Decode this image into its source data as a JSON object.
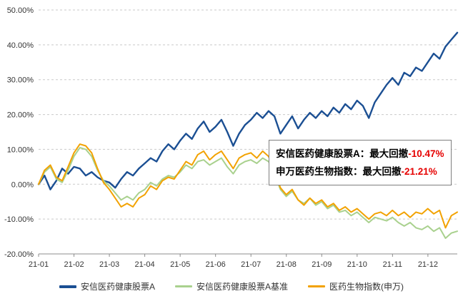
{
  "chart_data": {
    "type": "line",
    "title": "",
    "xlabel": "",
    "ylabel": "",
    "background": "#ffffff",
    "grid": "dashed-horizontal",
    "grid_color": "#c9c9c9",
    "axis_color": "#8c8c8c",
    "tick_label_color": "#333333",
    "legend_position": "bottom",
    "ylim": [
      -20,
      50
    ],
    "x_range": [
      0,
      11.83
    ],
    "y_ticks": [
      50,
      40,
      30,
      20,
      10,
      0,
      -10,
      -20
    ],
    "y_tick_labels": [
      "50.00%",
      "40.00%",
      "30.00%",
      "20.00%",
      "10.00%",
      "0.00%",
      "-10.00%",
      "-20.00%"
    ],
    "x_tick_positions": [
      0,
      1,
      2,
      3,
      4,
      5,
      6,
      7,
      8,
      9,
      10,
      11
    ],
    "x_tick_labels": [
      "21-01",
      "21-02",
      "21-03",
      "21-04",
      "21-05",
      "21-06",
      "21-07",
      "21-08",
      "21-09",
      "21-10",
      "21-11",
      "21-12"
    ],
    "unit": "percent",
    "series": [
      {
        "name": "安信医药健康股票A",
        "color": "#1b4f93",
        "width": 2.4,
        "values": [
          0.0,
          2.5,
          -1.5,
          1.0,
          4.5,
          3.0,
          5.0,
          4.5,
          2.5,
          3.5,
          2.0,
          1.0,
          0.5,
          -1.0,
          1.5,
          3.5,
          2.5,
          4.5,
          6.0,
          7.5,
          6.5,
          9.5,
          11.5,
          10.0,
          12.5,
          14.5,
          13.0,
          16.0,
          18.0,
          15.0,
          16.5,
          18.5,
          15.0,
          11.0,
          14.5,
          17.0,
          18.5,
          20.5,
          19.0,
          21.0,
          19.5,
          14.5,
          17.0,
          19.5,
          16.0,
          18.5,
          20.5,
          19.0,
          21.0,
          19.5,
          22.0,
          20.5,
          23.0,
          21.5,
          24.0,
          22.5,
          19.0,
          23.5,
          26.0,
          28.5,
          30.5,
          28.5,
          32.0,
          31.0,
          33.5,
          32.5,
          35.0,
          37.5,
          36.0,
          39.5,
          41.5,
          43.5
        ]
      },
      {
        "name": "安信医药健康股票A基准",
        "color": "#a9d18e",
        "width": 2,
        "values": [
          0.0,
          3.5,
          5.0,
          1.5,
          0.5,
          4.0,
          8.0,
          10.5,
          10.0,
          8.0,
          4.0,
          1.0,
          -0.5,
          -2.5,
          -4.5,
          -3.5,
          -4.5,
          -2.5,
          -1.5,
          0.5,
          -0.5,
          1.5,
          2.5,
          2.0,
          3.5,
          5.5,
          4.5,
          6.5,
          7.0,
          5.5,
          6.5,
          7.5,
          5.0,
          3.0,
          5.5,
          6.5,
          7.0,
          6.0,
          7.5,
          6.5,
          3.0,
          -1.5,
          -3.5,
          -2.0,
          -4.5,
          -5.5,
          -4.0,
          -6.0,
          -5.0,
          -7.0,
          -6.0,
          -8.0,
          -7.5,
          -9.0,
          -8.0,
          -9.5,
          -11.0,
          -9.5,
          -10.0,
          -10.5,
          -9.5,
          -11.0,
          -12.0,
          -11.0,
          -12.5,
          -13.0,
          -12.0,
          -13.5,
          -12.5,
          -15.5,
          -14.0,
          -13.5
        ]
      },
      {
        "name": "医药生物指数(申万)",
        "color": "#f2a200",
        "width": 2,
        "values": [
          0.0,
          4.0,
          5.5,
          2.0,
          1.0,
          5.0,
          9.0,
          11.5,
          11.0,
          9.0,
          4.5,
          0.5,
          -1.5,
          -4.0,
          -6.5,
          -5.5,
          -6.5,
          -4.0,
          -3.0,
          -0.5,
          -1.5,
          1.0,
          2.0,
          1.5,
          4.0,
          6.5,
          5.5,
          8.5,
          9.5,
          7.0,
          8.5,
          9.5,
          7.0,
          4.5,
          7.5,
          8.5,
          9.0,
          7.5,
          9.5,
          8.0,
          4.0,
          -1.0,
          -3.0,
          -1.5,
          -4.5,
          -6.0,
          -4.0,
          -5.5,
          -4.5,
          -6.5,
          -5.5,
          -7.5,
          -6.5,
          -8.0,
          -7.0,
          -8.5,
          -10.0,
          -8.5,
          -8.0,
          -9.0,
          -7.5,
          -9.0,
          -8.0,
          -9.5,
          -8.0,
          -8.5,
          -7.0,
          -8.5,
          -7.5,
          -12.5,
          -9.0,
          -8.0
        ]
      }
    ]
  },
  "annotation": {
    "line1_label": "安信医药健康股票A：最大回撤",
    "line1_value": "-10.47%",
    "line2_label": "申万医药生物指数：最大回撤",
    "line2_value": "-21.21%",
    "value_color": "#e60000",
    "border_color": "#7f7f7f"
  },
  "legend": {
    "items": [
      "安信医药健康股票A",
      "安信医药健康股票A基准",
      "医药生物指数(申万)"
    ]
  }
}
